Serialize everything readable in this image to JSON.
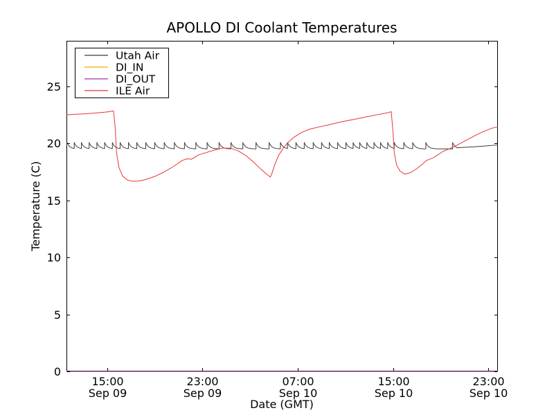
{
  "chart_data": {
    "type": "line",
    "title": "APOLLO DI Coolant Temperatures",
    "xlabel": "Date (GMT)",
    "ylabel": "Temperature (C)",
    "x_unit": "hours since Sep 09 00:00 GMT",
    "xlim": [
      11.6,
      47.8
    ],
    "ylim": [
      0,
      29
    ],
    "grid": false,
    "legend_position": "upper left",
    "xticks": [
      {
        "value": 15,
        "time": "15:00",
        "date": "Sep 09"
      },
      {
        "value": 23,
        "time": "23:00",
        "date": "Sep 09"
      },
      {
        "value": 31,
        "time": "07:00",
        "date": "Sep 10"
      },
      {
        "value": 39,
        "time": "15:00",
        "date": "Sep 10"
      },
      {
        "value": 47,
        "time": "23:00",
        "date": "Sep 10"
      }
    ],
    "yticks": [
      0,
      5,
      10,
      15,
      20,
      25
    ],
    "series": [
      {
        "name": "Utah Air",
        "color": "#3a3a3a",
        "style": "sawtooth",
        "baseline": 19.52,
        "peak": 20.08,
        "decay_tau_hours": 0.22,
        "start": [
          11.6,
          19.65
        ],
        "spike_times": [
          11.65,
          12.25,
          12.85,
          13.5,
          14.15,
          14.8,
          15.45,
          16.1,
          16.8,
          17.5,
          18.25,
          19.0,
          19.8,
          20.65,
          21.5,
          22.45,
          23.4,
          24.4,
          25.4,
          26.4,
          27.5,
          28.6,
          29.55,
          30.15,
          30.85,
          31.55,
          32.3,
          33.0,
          33.65,
          34.35,
          35.05,
          35.65,
          36.2,
          36.8,
          37.4,
          37.95,
          38.55,
          39.1,
          39.9,
          40.65,
          41.75,
          44.0
        ],
        "tail_points": [
          [
            44.35,
            19.62
          ],
          [
            45.0,
            19.66
          ],
          [
            45.8,
            19.7
          ],
          [
            46.6,
            19.76
          ],
          [
            47.3,
            19.82
          ],
          [
            47.8,
            19.88
          ]
        ]
      },
      {
        "name": "DI_IN",
        "color": "#ffa500",
        "style": "line",
        "points": [
          [
            11.6,
            0
          ],
          [
            47.8,
            0
          ]
        ]
      },
      {
        "name": "DI_OUT",
        "color": "#993399",
        "style": "line",
        "points": [
          [
            11.6,
            0
          ],
          [
            47.8,
            0
          ]
        ]
      },
      {
        "name": "ILE Air",
        "color": "#e83333",
        "style": "line",
        "points": [
          [
            11.6,
            22.5
          ],
          [
            12.3,
            22.55
          ],
          [
            13.2,
            22.6
          ],
          [
            14.2,
            22.68
          ],
          [
            15.0,
            22.76
          ],
          [
            15.55,
            22.85
          ],
          [
            15.68,
            21.5
          ],
          [
            15.8,
            19.2
          ],
          [
            16.0,
            17.9
          ],
          [
            16.3,
            17.15
          ],
          [
            16.7,
            16.8
          ],
          [
            17.1,
            16.68
          ],
          [
            17.7,
            16.7
          ],
          [
            18.3,
            16.85
          ],
          [
            19.0,
            17.1
          ],
          [
            19.7,
            17.45
          ],
          [
            20.3,
            17.8
          ],
          [
            20.9,
            18.2
          ],
          [
            21.3,
            18.5
          ],
          [
            21.7,
            18.65
          ],
          [
            22.1,
            18.62
          ],
          [
            22.7,
            19.0
          ],
          [
            23.4,
            19.22
          ],
          [
            24.1,
            19.45
          ],
          [
            24.8,
            19.6
          ],
          [
            25.4,
            19.57
          ],
          [
            26.0,
            19.35
          ],
          [
            26.7,
            18.9
          ],
          [
            27.3,
            18.35
          ],
          [
            27.9,
            17.75
          ],
          [
            28.4,
            17.3
          ],
          [
            28.7,
            17.05
          ],
          [
            28.85,
            17.4
          ],
          [
            29.1,
            18.2
          ],
          [
            29.4,
            18.95
          ],
          [
            29.8,
            19.6
          ],
          [
            30.2,
            20.1
          ],
          [
            30.7,
            20.55
          ],
          [
            31.3,
            20.95
          ],
          [
            32.0,
            21.25
          ],
          [
            32.8,
            21.45
          ],
          [
            33.7,
            21.65
          ],
          [
            34.7,
            21.9
          ],
          [
            35.7,
            22.1
          ],
          [
            36.7,
            22.32
          ],
          [
            37.7,
            22.52
          ],
          [
            38.5,
            22.68
          ],
          [
            38.85,
            22.78
          ],
          [
            39.0,
            21.0
          ],
          [
            39.1,
            19.2
          ],
          [
            39.3,
            18.1
          ],
          [
            39.6,
            17.55
          ],
          [
            40.0,
            17.3
          ],
          [
            40.5,
            17.45
          ],
          [
            41.0,
            17.8
          ],
          [
            41.5,
            18.2
          ],
          [
            41.8,
            18.5
          ],
          [
            42.4,
            18.75
          ],
          [
            43.2,
            19.3
          ],
          [
            44.1,
            19.7
          ],
          [
            45.0,
            20.2
          ],
          [
            45.9,
            20.7
          ],
          [
            46.6,
            21.05
          ],
          [
            47.2,
            21.3
          ],
          [
            47.6,
            21.42
          ],
          [
            47.8,
            21.38
          ]
        ]
      }
    ]
  }
}
